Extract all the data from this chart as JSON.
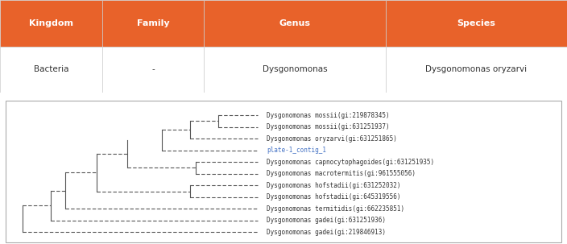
{
  "table": {
    "headers": [
      "Kingdom",
      "Family",
      "Genus",
      "Species"
    ],
    "row": [
      "Bacteria",
      "-",
      "Dysgonomonas",
      "Dysgonomonas oryzarvi"
    ],
    "header_bg": "#E8622A",
    "header_fg": "#FFFFFF",
    "row_bg": "#FFFFFF",
    "row_fg": "#333333",
    "border_color": "#CCCCCC"
  },
  "tree": {
    "labels": [
      "Dysgonomonas mossii(gi:219878345)",
      "Dysgonomonas mossii(gi:631251937)",
      "Dysgonomonas oryzarvi(gi:631251865)",
      "plate-1_contig_1",
      "Dysgonomonas capnocytophagoides(gi:631251935)",
      "Dysgonomonas macrotermitis(gi:961555056)",
      "Dysgonomonas hofstadii(gi:631252032)",
      "Dysgonomonas hofstadii(gi:645319556)",
      "Dysgonomonas termitidis(gi:662235851)",
      "Dysgonomonas gadei(gi:631251936)",
      "Dysgonomonas gadei(gi:219846913)"
    ],
    "highlight_index": 3,
    "highlight_color": "#4472C4",
    "normal_color": "#333333",
    "line_color": "#555555",
    "bg_color": "#FFFFFF",
    "border_color": "#AAAAAA"
  }
}
